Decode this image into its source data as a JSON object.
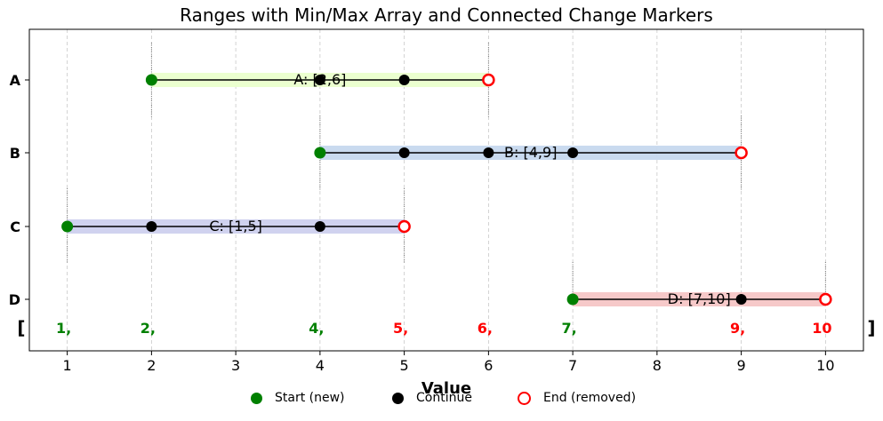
{
  "chart_data": {
    "type": "range",
    "title": "Ranges with Min/Max Array and Connected Change Markers",
    "xlabel": "Value",
    "ylabel": "",
    "xlim": [
      0.55,
      10.45
    ],
    "xticks": [
      1,
      2,
      3,
      4,
      5,
      6,
      7,
      8,
      9,
      10
    ],
    "grid": "vertical dashed",
    "categories": [
      "A",
      "B",
      "C",
      "D"
    ],
    "ranges": [
      {
        "name": "A",
        "min": 2,
        "max": 6,
        "label": "A: [2,6]",
        "color": "#eaffcc",
        "continue_points": [
          4,
          5
        ]
      },
      {
        "name": "B",
        "min": 4,
        "max": 9,
        "label": "B: [4,9]",
        "color": "#c6d8ee",
        "continue_points": [
          5,
          6,
          7
        ]
      },
      {
        "name": "C",
        "min": 1,
        "max": 5,
        "label": "C: [1,5]",
        "color": "#cdd0ee",
        "continue_points": [
          2,
          4
        ]
      },
      {
        "name": "D",
        "min": 7,
        "max": 10,
        "label": "D: [7,10]",
        "color": "#f5c6c6",
        "continue_points": [
          9
        ]
      }
    ],
    "array_row": {
      "open_bracket": "[",
      "close_bracket": "]",
      "items": [
        {
          "x": 1,
          "text": "1,",
          "color": "#008000"
        },
        {
          "x": 2,
          "text": "2,",
          "color": "#008000"
        },
        {
          "x": 4,
          "text": "4,",
          "color": "#008000"
        },
        {
          "x": 5,
          "text": "5,",
          "color": "#ff0000"
        },
        {
          "x": 6,
          "text": "6,",
          "color": "#ff0000"
        },
        {
          "x": 7,
          "text": "7,",
          "color": "#008000"
        },
        {
          "x": 9,
          "text": "9,",
          "color": "#ff0000"
        },
        {
          "x": 10,
          "text": "10",
          "color": "#ff0000"
        }
      ]
    },
    "change_markers": [
      1,
      2,
      4,
      5,
      6,
      7,
      9,
      10
    ],
    "legend": {
      "placement": "bottom-center",
      "entries": [
        {
          "label": "Start (new)",
          "marker": "filled-circle",
          "color": "#008000"
        },
        {
          "label": "Continue",
          "marker": "filled-circle",
          "color": "#000000"
        },
        {
          "label": "End (removed)",
          "marker": "open-circle",
          "color": "#ff0000"
        }
      ]
    }
  }
}
